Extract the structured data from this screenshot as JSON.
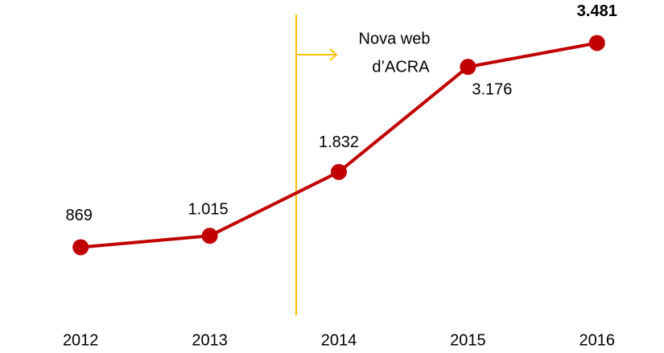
{
  "chart_data": {
    "type": "line",
    "categories": [
      "2012",
      "2013",
      "2014",
      "2015",
      "2016"
    ],
    "values": [
      869,
      1015,
      1832,
      3176,
      3481
    ],
    "value_labels": [
      "869",
      "1.015",
      "1.832",
      "3.176",
      "3.481"
    ],
    "color": "#c00000",
    "ylim": [
      0,
      4000
    ],
    "annotation": {
      "lines": [
        "Nova web",
        "d’ACRA"
      ],
      "color": "#ffc000"
    }
  }
}
